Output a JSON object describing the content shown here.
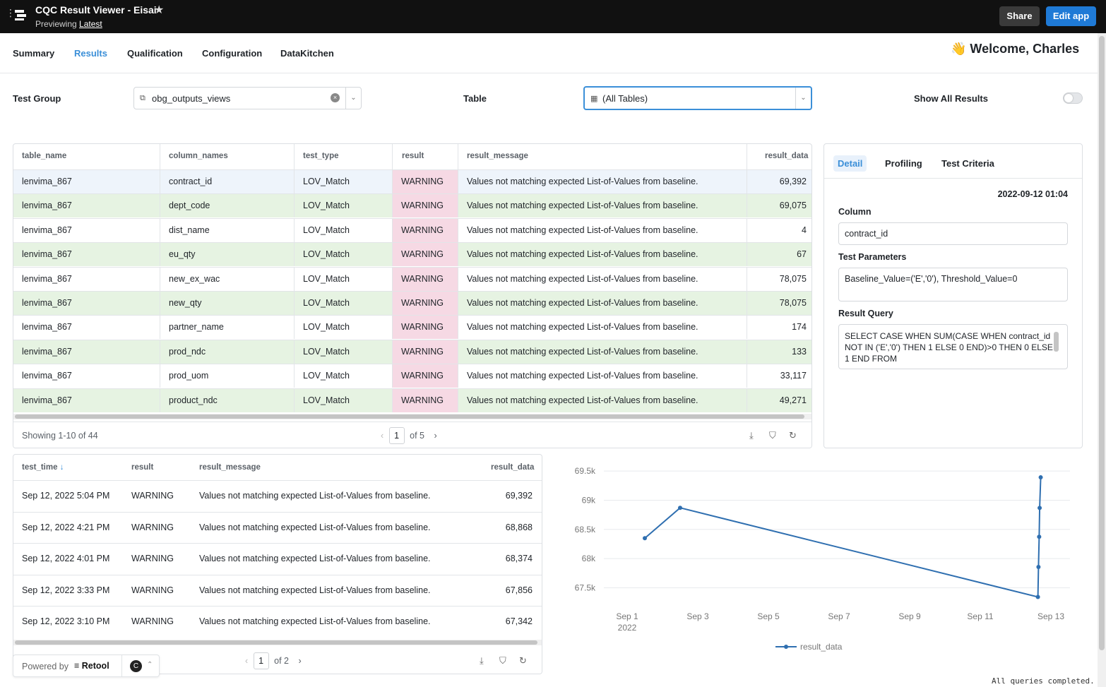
{
  "app": {
    "title": "CQC Result Viewer - Eisai",
    "preview_label": "Previewing",
    "preview_version": "Latest",
    "share": "Share",
    "edit": "Edit app"
  },
  "nav": {
    "tabs": [
      "Summary",
      "Results",
      "Qualification",
      "Configuration",
      "DataKitchen"
    ],
    "active": "Results",
    "welcome": "👋 Welcome, Charles"
  },
  "filters": {
    "test_group_label": "Test Group",
    "test_group_value": "obg_outputs_views",
    "table_label": "Table",
    "table_value": "(All Tables)",
    "show_all_label": "Show All Results",
    "show_all_on": false
  },
  "results_table": {
    "columns": [
      "table_name",
      "column_names",
      "test_type",
      "result",
      "result_message",
      "result_data"
    ],
    "rows": [
      [
        "lenvima_867",
        "contract_id",
        "LOV_Match",
        "WARNING",
        "Values not matching expected List-of-Values from baseline.",
        "69,392"
      ],
      [
        "lenvima_867",
        "dept_code",
        "LOV_Match",
        "WARNING",
        "Values not matching expected List-of-Values from baseline.",
        "69,075"
      ],
      [
        "lenvima_867",
        "dist_name",
        "LOV_Match",
        "WARNING",
        "Values not matching expected List-of-Values from baseline.",
        "4"
      ],
      [
        "lenvima_867",
        "eu_qty",
        "LOV_Match",
        "WARNING",
        "Values not matching expected List-of-Values from baseline.",
        "67"
      ],
      [
        "lenvima_867",
        "new_ex_wac",
        "LOV_Match",
        "WARNING",
        "Values not matching expected List-of-Values from baseline.",
        "78,075"
      ],
      [
        "lenvima_867",
        "new_qty",
        "LOV_Match",
        "WARNING",
        "Values not matching expected List-of-Values from baseline.",
        "78,075"
      ],
      [
        "lenvima_867",
        "partner_name",
        "LOV_Match",
        "WARNING",
        "Values not matching expected List-of-Values from baseline.",
        "174"
      ],
      [
        "lenvima_867",
        "prod_ndc",
        "LOV_Match",
        "WARNING",
        "Values not matching expected List-of-Values from baseline.",
        "133"
      ],
      [
        "lenvima_867",
        "prod_uom",
        "LOV_Match",
        "WARNING",
        "Values not matching expected List-of-Values from baseline.",
        "33,117"
      ],
      [
        "lenvima_867",
        "product_ndc",
        "LOV_Match",
        "WARNING",
        "Values not matching expected List-of-Values from baseline.",
        "49,271"
      ]
    ],
    "showing": "Showing 1-10 of 44",
    "page": "1",
    "of_pages": "of 5"
  },
  "detail": {
    "tabs": [
      "Detail",
      "Profiling",
      "Test Criteria"
    ],
    "timestamp": "2022-09-12 01:04",
    "column_label": "Column",
    "column_value": "contract_id",
    "params_label": "Test Parameters",
    "params_value": "Baseline_Value=('E','0'), Threshold_Value=0",
    "query_label": "Result Query",
    "query_value": "SELECT CASE WHEN SUM(CASE WHEN contract_id NOT IN ('E','0') THEN 1 ELSE 0 END)>0 THEN 0 ELSE 1 END FROM"
  },
  "history_table": {
    "columns": [
      "test_time",
      "result",
      "result_message",
      "result_data"
    ],
    "sort_icon": "arrow-down-icon",
    "rows": [
      [
        "Sep 12, 2022 5:04 PM",
        "WARNING",
        "Values not matching expected List-of-Values from baseline.",
        "69,392"
      ],
      [
        "Sep 12, 2022 4:21 PM",
        "WARNING",
        "Values not matching expected List-of-Values from baseline.",
        "68,868"
      ],
      [
        "Sep 12, 2022 4:01 PM",
        "WARNING",
        "Values not matching expected List-of-Values from baseline.",
        "68,374"
      ],
      [
        "Sep 12, 2022 3:33 PM",
        "WARNING",
        "Values not matching expected List-of-Values from baseline.",
        "67,856"
      ],
      [
        "Sep 12, 2022 3:10 PM",
        "WARNING",
        "Values not matching expected List-of-Values from baseline.",
        "67,342"
      ]
    ],
    "page": "1",
    "of_pages": "of 2"
  },
  "chart_data": {
    "type": "line",
    "series": [
      {
        "name": "result_data",
        "points": [
          [
            "2022-09-01 12:00",
            68350
          ],
          [
            "2022-09-02 12:00",
            68870
          ],
          [
            "2022-09-12 15:10",
            67342
          ],
          [
            "2022-09-12 15:33",
            67856
          ],
          [
            "2022-09-12 16:01",
            68374
          ],
          [
            "2022-09-12 16:21",
            68868
          ],
          [
            "2022-09-12 17:04",
            69392
          ]
        ]
      }
    ],
    "yticks": [
      "69.5k",
      "69k",
      "68.5k",
      "68k",
      "67.5k"
    ],
    "ytick_values": [
      69500,
      69000,
      68500,
      68000,
      67500
    ],
    "xticks": [
      "Sep 1",
      "Sep 3",
      "Sep 5",
      "Sep 7",
      "Sep 9",
      "Sep 11",
      "Sep 13"
    ],
    "xtick_dates": [
      "2022-09-01",
      "2022-09-03",
      "2022-09-05",
      "2022-09-07",
      "2022-09-09",
      "2022-09-11",
      "2022-09-13"
    ],
    "xtick_sub": "2022",
    "ylim": [
      67300,
      69550
    ],
    "color": "#2f6fb0",
    "grid": true,
    "legend": "bottom-center"
  },
  "powered_by": {
    "label": "Powered by",
    "brand": "Retool",
    "avatar": "C"
  },
  "status": "All queries completed.",
  "colors": {
    "accent": "#3b8fd8",
    "warning_bg": "#f6d9e4",
    "row_green": "#e6f3e2",
    "selected_row": "#eef4fb"
  }
}
